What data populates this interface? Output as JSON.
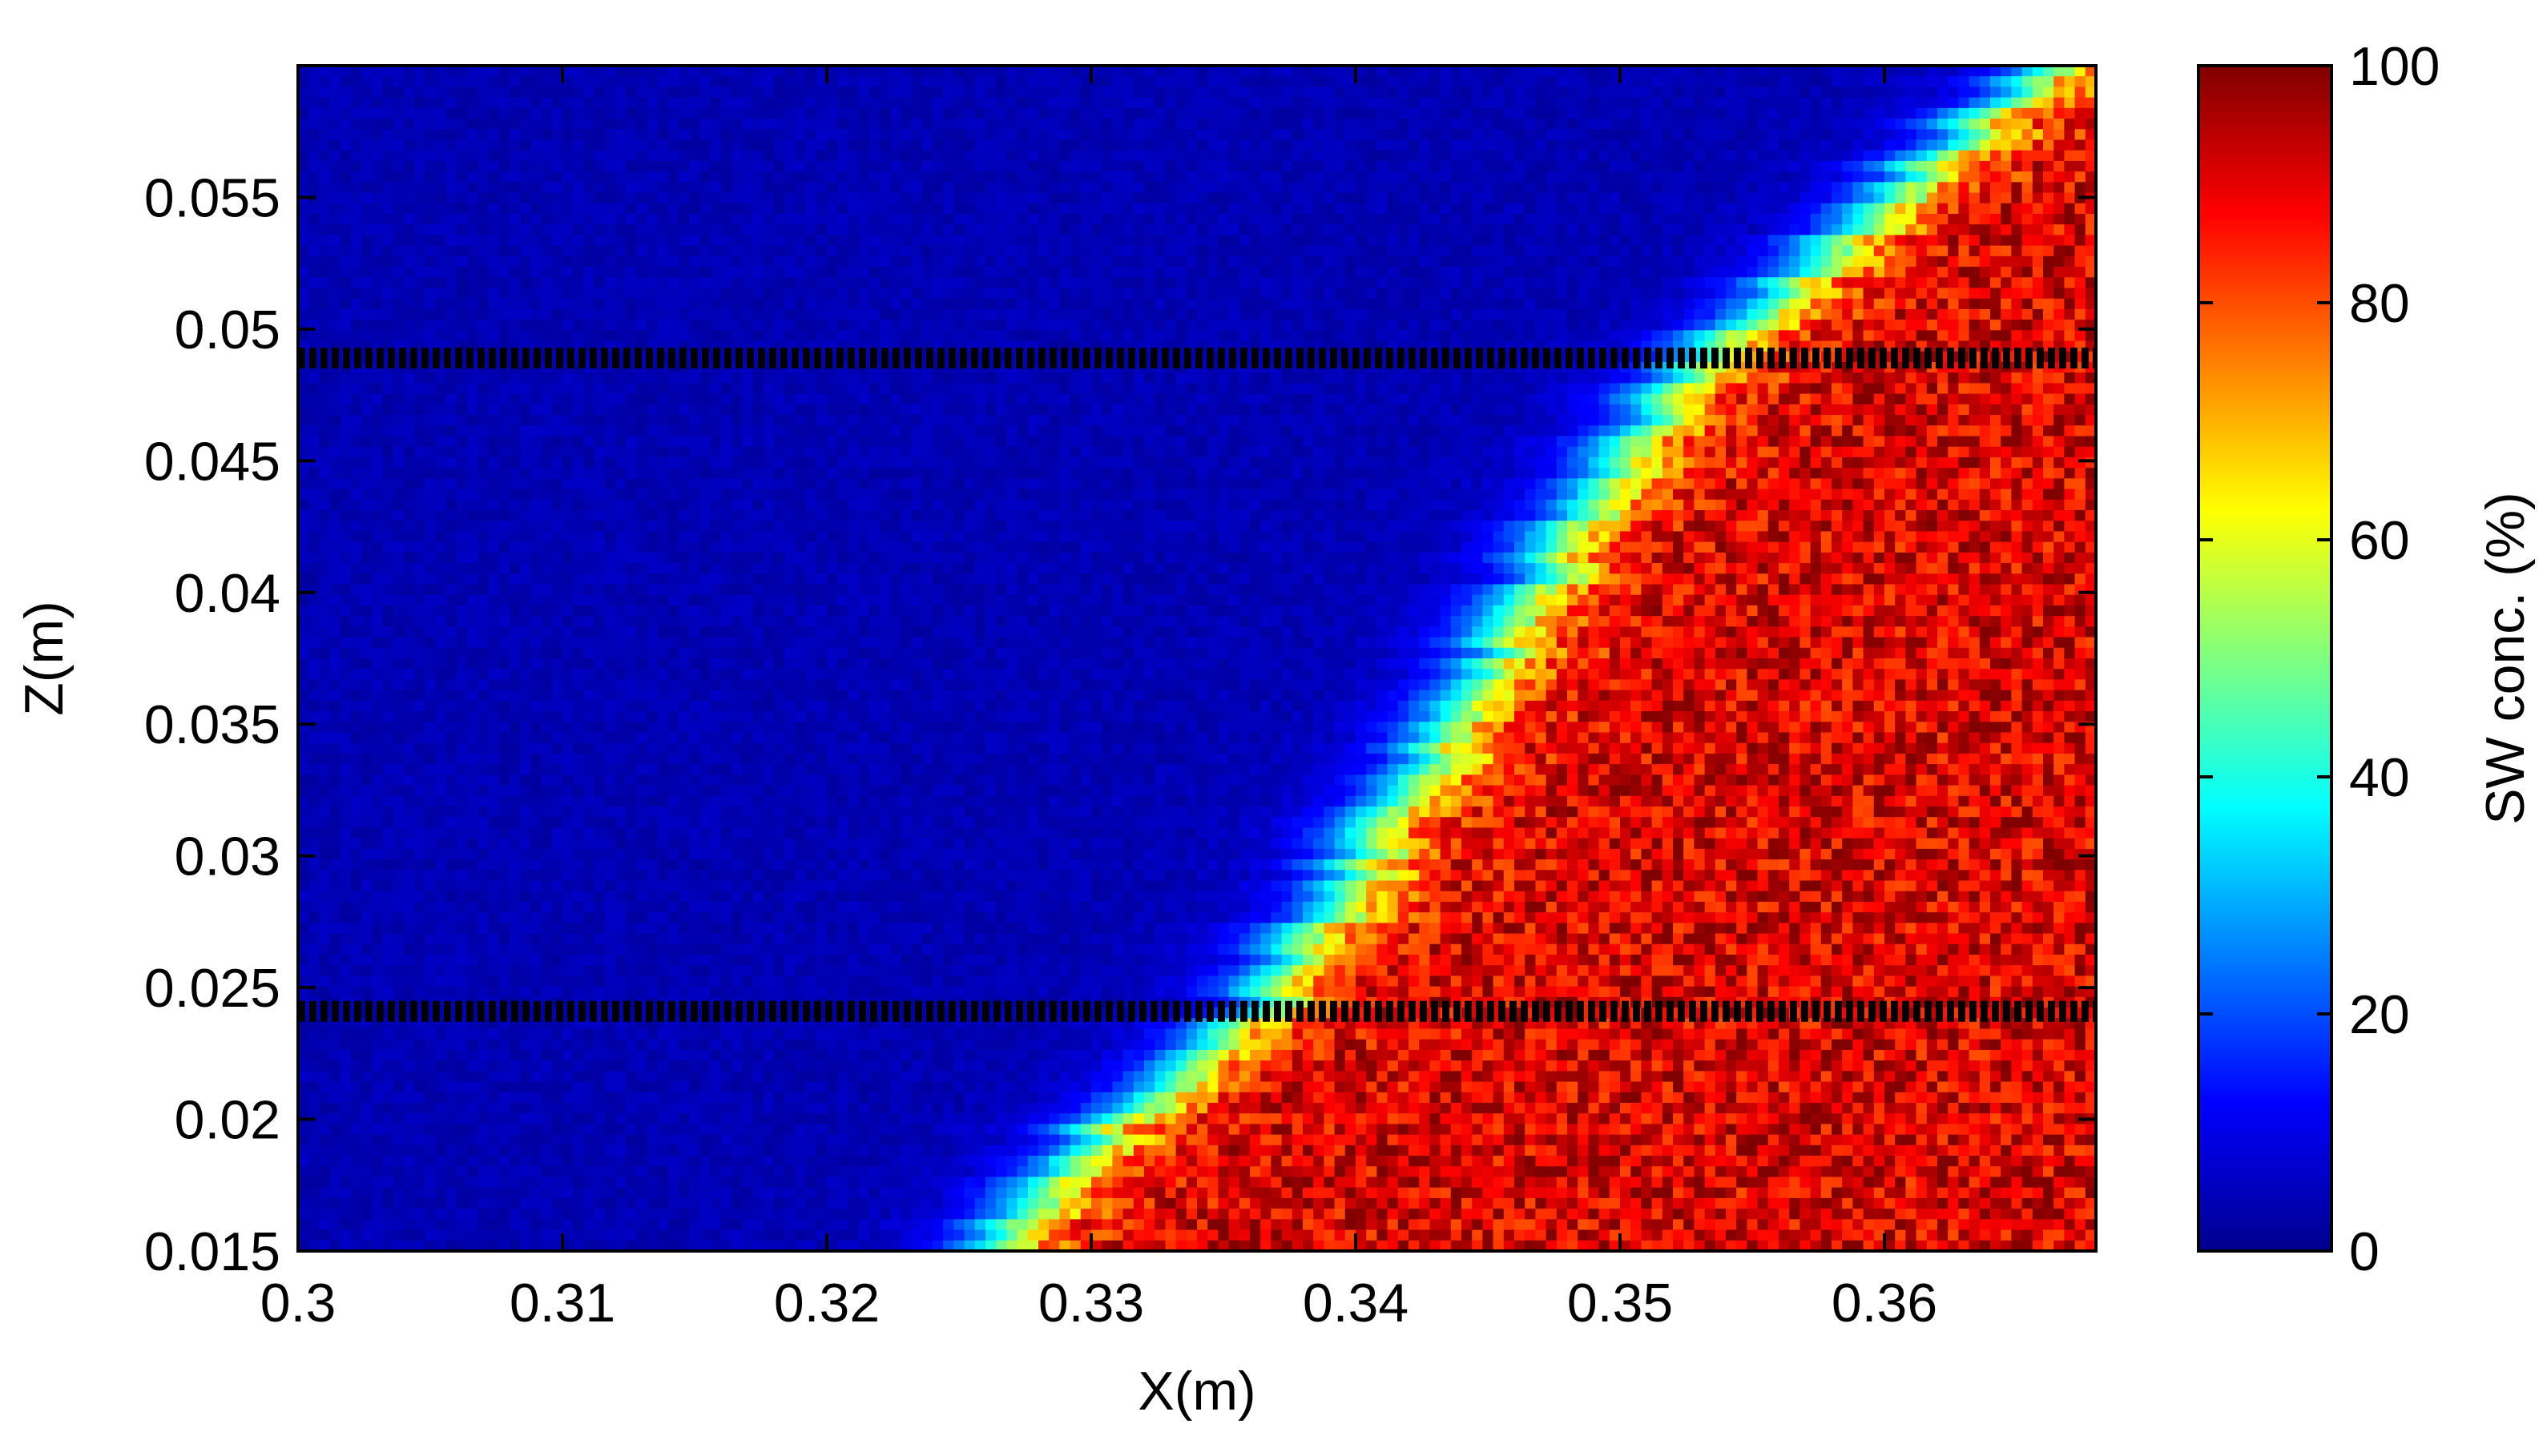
{
  "chart_data": {
    "type": "heatmap",
    "xlabel": "X(m)",
    "ylabel": "Z(m)",
    "xlim": [
      0.3,
      0.368
    ],
    "ylim": [
      0.015,
      0.06
    ],
    "x_ticks": [
      0.3,
      0.31,
      0.32,
      0.33,
      0.34,
      0.35,
      0.36
    ],
    "x_tick_labels": [
      "0.3",
      "0.31",
      "0.32",
      "0.33",
      "0.34",
      "0.35",
      "0.36"
    ],
    "y_ticks": [
      0.015,
      0.02,
      0.025,
      0.03,
      0.035,
      0.04,
      0.045,
      0.05,
      0.055
    ],
    "y_tick_labels": [
      "0.015",
      "0.02",
      "0.025",
      "0.03",
      "0.035",
      "0.04",
      "0.045",
      "0.05",
      "0.055"
    ],
    "colorbar": {
      "label": "SW conc. (%)",
      "range": [
        0,
        100
      ],
      "ticks": [
        0,
        20,
        40,
        60,
        80,
        100
      ],
      "tick_labels": [
        "0",
        "20",
        "40",
        "60",
        "80",
        "100"
      ],
      "colormap": "jet"
    },
    "interface": {
      "description_points_x_at_z": [
        {
          "z": 0.015,
          "x": 0.326
        },
        {
          "z": 0.02,
          "x": 0.331
        },
        {
          "z": 0.024,
          "x": 0.3365
        },
        {
          "z": 0.03,
          "x": 0.3405
        },
        {
          "z": 0.035,
          "x": 0.344
        },
        {
          "z": 0.04,
          "x": 0.347
        },
        {
          "z": 0.045,
          "x": 0.35
        },
        {
          "z": 0.049,
          "x": 0.3535
        },
        {
          "z": 0.052,
          "x": 0.357
        },
        {
          "z": 0.056,
          "x": 0.3615
        },
        {
          "z": 0.06,
          "x": 0.3665
        }
      ],
      "transition_width_x": 0.006,
      "left_conc": 5,
      "right_conc": 92
    },
    "reference_lines_z": [
      0.0489,
      0.0241
    ],
    "reference_line_style": "dotted-black"
  }
}
